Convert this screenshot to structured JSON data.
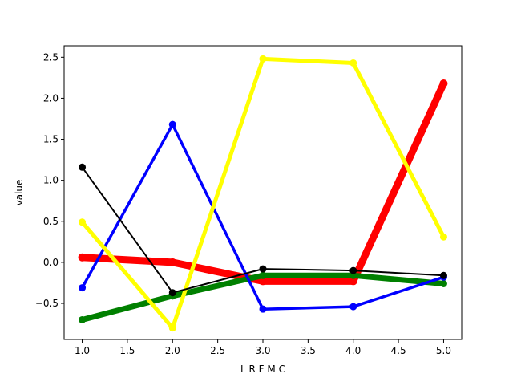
{
  "chart_data": {
    "type": "line",
    "title": "",
    "xlabel": "L R F M C",
    "ylabel": "value",
    "xlim": [
      0.8,
      5.2
    ],
    "ylim": [
      -0.94,
      2.64
    ],
    "xticks": [
      "1.0",
      "1.5",
      "2.0",
      "2.5",
      "3.0",
      "3.5",
      "4.0",
      "4.5",
      "5.0"
    ],
    "yticks": [
      "2.5",
      "2.0",
      "1.5",
      "1.0",
      "0.5",
      "0.0",
      "−0.5"
    ],
    "grid": false,
    "legend": "none",
    "series": [
      {
        "color": "#ff0000",
        "x": [
          1,
          2,
          3,
          4,
          5
        ],
        "values": [
          0.06,
          0.0,
          -0.23,
          -0.23,
          2.18
        ]
      },
      {
        "color": "#008000",
        "x": [
          1,
          2,
          3,
          4,
          5
        ],
        "values": [
          -0.7,
          -0.41,
          -0.16,
          -0.16,
          -0.26
        ]
      },
      {
        "color": "#0000ff",
        "x": [
          1,
          2,
          3,
          4,
          5
        ],
        "values": [
          -0.31,
          1.68,
          -0.57,
          -0.54,
          -0.18
        ]
      },
      {
        "color": "#ffff00",
        "x": [
          1,
          2,
          3,
          4,
          5
        ],
        "values": [
          0.49,
          -0.8,
          2.48,
          2.43,
          0.31
        ]
      },
      {
        "color": "#000000",
        "x": [
          1,
          2,
          3,
          4,
          5
        ],
        "values": [
          1.16,
          -0.37,
          -0.08,
          -0.1,
          -0.16
        ]
      }
    ]
  }
}
